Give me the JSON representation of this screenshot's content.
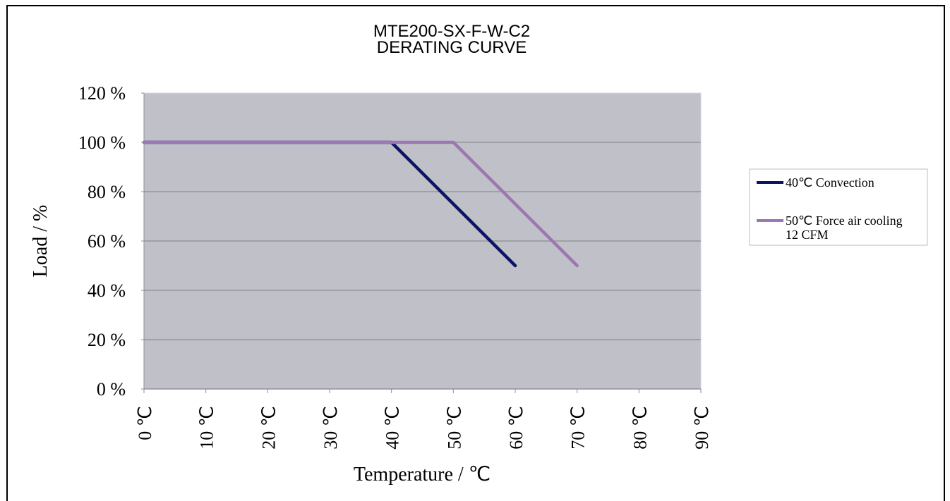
{
  "chart_data": {
    "type": "line",
    "title": [
      "MTE200-SX-F-W-C2",
      "DERATING CURVE"
    ],
    "xlabel": "Temperature / ℃",
    "ylabel": "Load / %",
    "x_ticks": [
      "0 ℃",
      "10 ℃",
      "20 ℃",
      "30 ℃",
      "40 ℃",
      "50 ℃",
      "60 ℃",
      "70 ℃",
      "80 ℃",
      "90 ℃"
    ],
    "y_ticks": [
      "0 %",
      "20 %",
      "40 %",
      "60 %",
      "80 %",
      "100 %",
      "120 %"
    ],
    "xlim": [
      0,
      90
    ],
    "ylim": [
      0,
      120
    ],
    "grid": "horizontal",
    "plot_background": "#c0c0c8",
    "legend_position": "right",
    "series": [
      {
        "name": [
          "40℃ Convection"
        ],
        "color": "#0a1464",
        "points": [
          [
            0,
            100
          ],
          [
            40,
            100
          ],
          [
            60,
            50
          ]
        ]
      },
      {
        "name": [
          "50℃ Force air cooling",
          "12 CFM"
        ],
        "color": "#9b77b4",
        "points": [
          [
            0,
            100
          ],
          [
            50,
            100
          ],
          [
            70,
            50
          ]
        ]
      }
    ]
  }
}
